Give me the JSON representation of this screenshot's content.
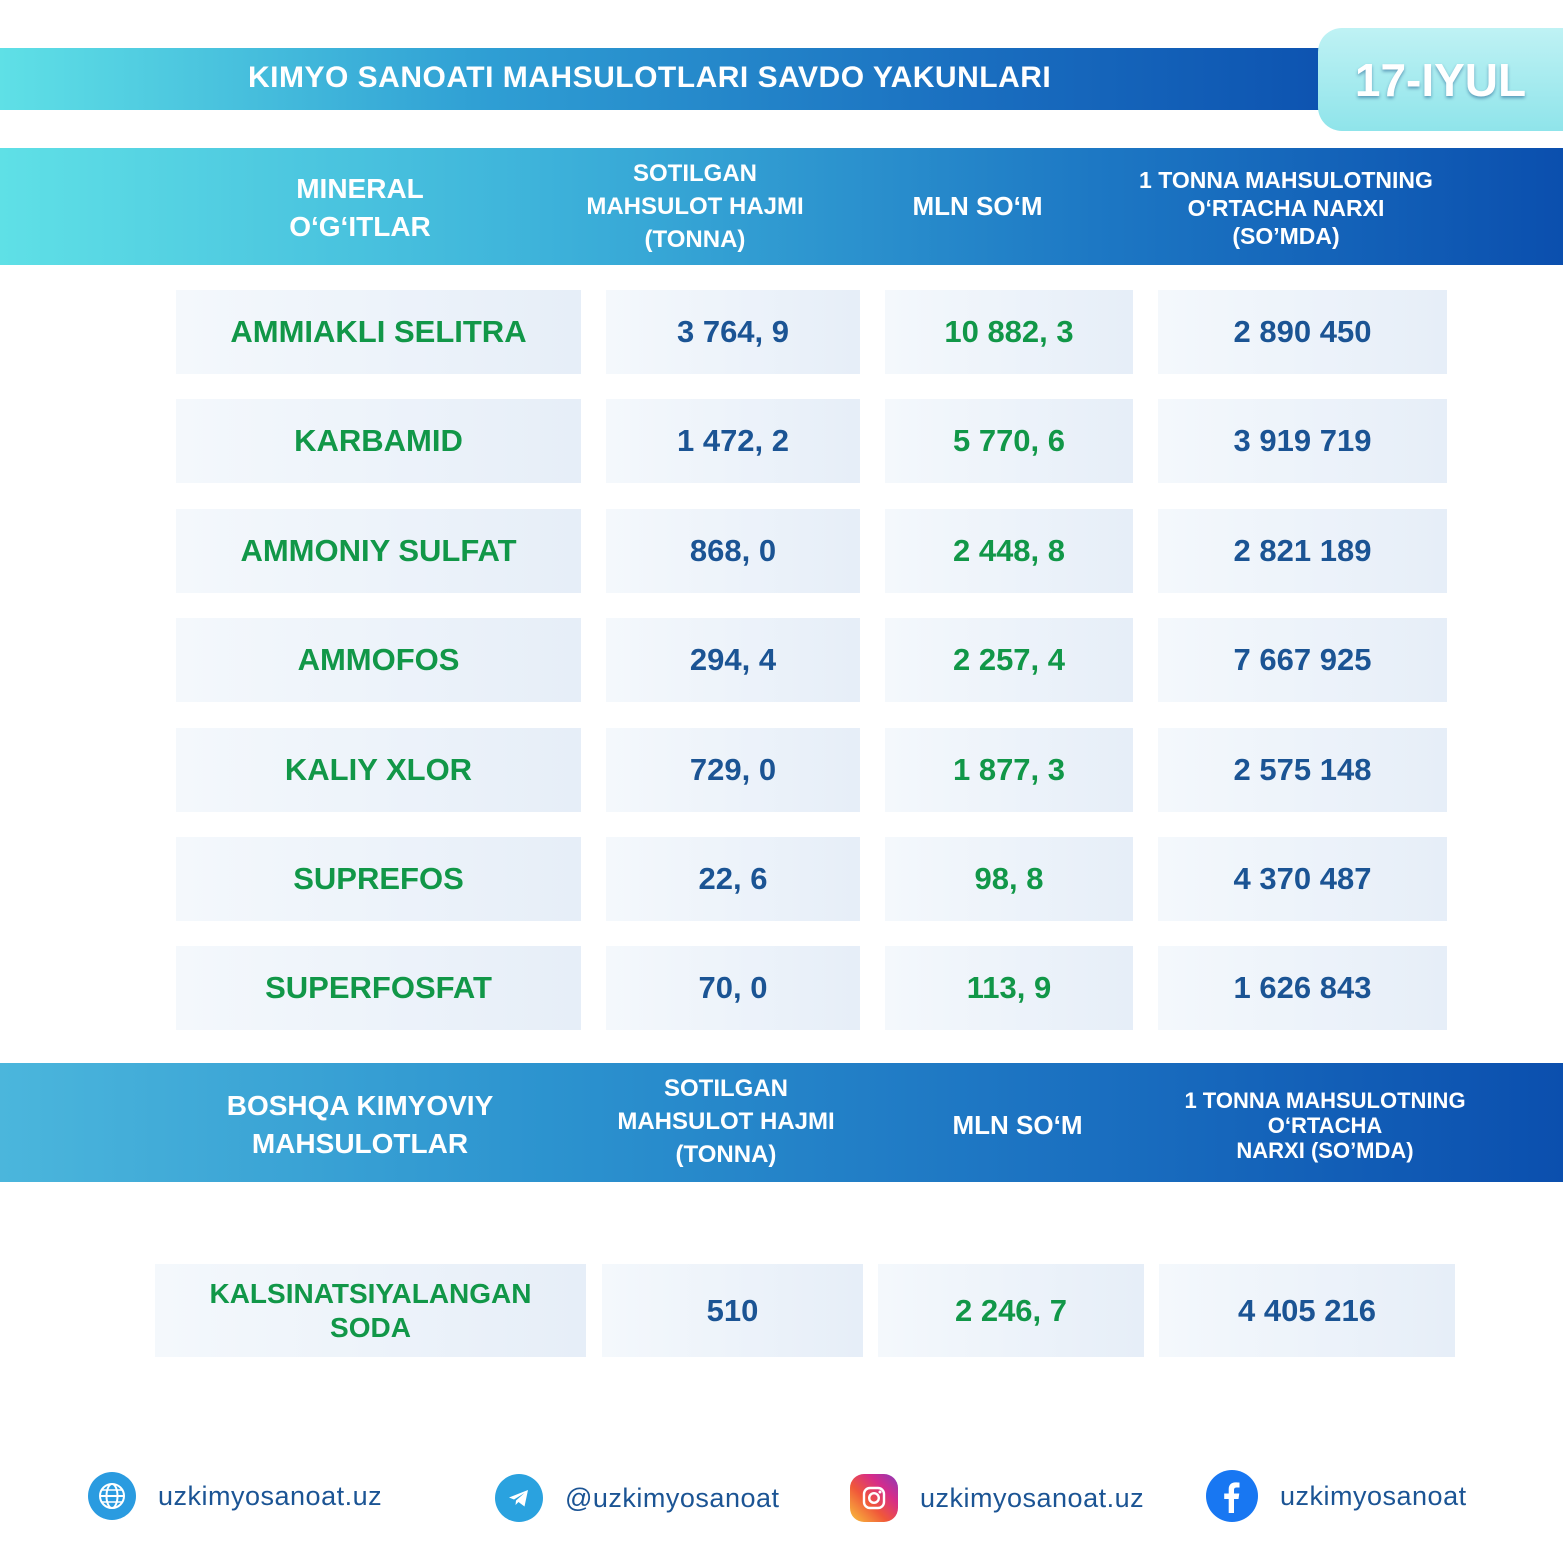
{
  "header": {
    "title": "KIMYO SANOATI MAHSULOTLARI SAVDO YAKUNLARI",
    "date": "17-IYUL"
  },
  "table1": {
    "columns": [
      "MINERAL\nO‘G‘ITLAR",
      "SOTILGAN\nMAHSULOT HAJMI\n(TONNA)",
      "MLN SO‘M",
      "1 TONNA MAHSULOTNING\nO‘RTACHA NARXI\n(SO’MDA)"
    ],
    "rows": [
      {
        "name": "AMMIAKLI SELITRA",
        "volume": "3 764, 9",
        "mln": "10 882, 3",
        "price": "2 890 450"
      },
      {
        "name": "KARBAMID",
        "volume": "1 472, 2",
        "mln": "5 770, 6",
        "price": "3 919 719"
      },
      {
        "name": "AMMONIY SULFAT",
        "volume": "868, 0",
        "mln": "2 448, 8",
        "price": "2 821 189"
      },
      {
        "name": "AMMOFOS",
        "volume": "294, 4",
        "mln": "2 257, 4",
        "price": "7 667 925"
      },
      {
        "name": "KALIY XLOR",
        "volume": "729, 0",
        "mln": "1 877, 3",
        "price": "2 575 148"
      },
      {
        "name": "SUPREFOS",
        "volume": "22, 6",
        "mln": "98, 8",
        "price": "4 370 487"
      },
      {
        "name": "SUPERFOSFAT",
        "volume": "70, 0",
        "mln": "113, 9",
        "price": "1 626 843"
      }
    ]
  },
  "table2": {
    "columns": [
      "BOSHQA KIMYOVIY\nMAHSULOTLAR",
      "SOTILGAN\nMAHSULOT HAJMI\n(TONNA)",
      "MLN SO‘M",
      "1 TONNA MAHSULOTNING\nO‘RTACHA\nNARXI (SO’MDA)"
    ],
    "rows": [
      {
        "name": "KALSINATSIYALANGAN\nSODA",
        "volume": "510",
        "mln": "2 246, 7",
        "price": "4 405 216"
      }
    ]
  },
  "footer": [
    {
      "icon": "globe-icon",
      "text": "uzkimyosanoat.uz"
    },
    {
      "icon": "telegram-icon",
      "text": "@uzkimyosanoat"
    },
    {
      "icon": "instagram-icon",
      "text": "uzkimyosanoat.uz"
    },
    {
      "icon": "facebook-icon",
      "text": "uzkimyosanoat"
    }
  ],
  "colors": {
    "green_text": "#119748",
    "blue_text": "#1b5494",
    "accent_dark": "#0b4fae",
    "accent_light": "#5fe0e6"
  }
}
